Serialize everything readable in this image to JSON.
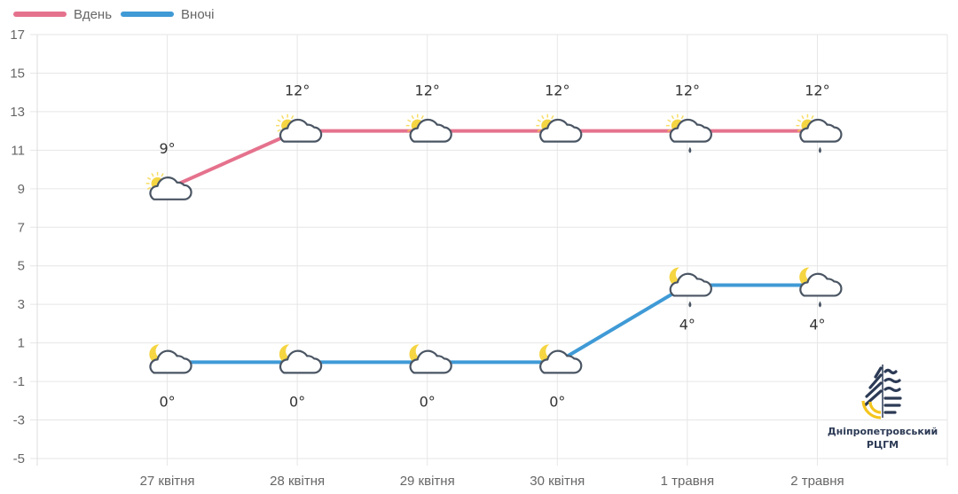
{
  "legend": {
    "day_label": "Вдень",
    "night_label": "Вночі"
  },
  "colors": {
    "day": "#e5728d",
    "night": "#3f9ad6",
    "grid": "#e6e6e6",
    "tick_text": "#666666",
    "value_text": "#333333",
    "cloud_outline": "#4a5563",
    "sun_moon": "#f5d542"
  },
  "logo": {
    "line1": "Дніпропетровський",
    "line2": "РЦГМ"
  },
  "chart_data": {
    "type": "line",
    "title": "",
    "xlabel": "",
    "ylabel": "",
    "categories": [
      "27 квітня",
      "28 квітня",
      "29 квітня",
      "30 квітня",
      "1 травня",
      "2 травня"
    ],
    "series": [
      {
        "name": "Вдень",
        "values": [
          9,
          12,
          12,
          12,
          12,
          12
        ],
        "labels": [
          "9°",
          "12°",
          "12°",
          "12°",
          "12°",
          "12°"
        ],
        "icons": [
          "sun-cloud",
          "sun-cloud",
          "sun-cloud",
          "sun-cloud",
          "sun-cloud-rain",
          "sun-cloud-rain"
        ]
      },
      {
        "name": "Вночі",
        "values": [
          0,
          0,
          0,
          0,
          4,
          4
        ],
        "labels": [
          "0°",
          "0°",
          "0°",
          "0°",
          "4°",
          "4°"
        ],
        "icons": [
          "moon-cloud",
          "moon-cloud",
          "moon-cloud",
          "moon-cloud",
          "moon-cloud-rain",
          "moon-cloud-rain"
        ]
      }
    ],
    "yticks": [
      17,
      15,
      13,
      11,
      9,
      7,
      5,
      3,
      1,
      -1,
      -3,
      -5
    ],
    "ylim": [
      -5,
      17
    ],
    "grid": true,
    "legend_position": "top-left"
  }
}
